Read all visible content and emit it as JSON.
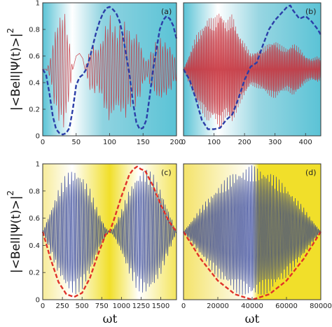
{
  "figure": {
    "ylabel_top": "|<Bell|Ψ(t)>|",
    "ylabel_bottom": "|<Bell|Ψ(t)>|",
    "ylabel_exponent": "2",
    "xlabel_left": "ωt",
    "xlabel_right": "ωt",
    "colors": {
      "cyan_bg": "#5bc3d6",
      "yellow_bg": "#f1df2a",
      "red_signal": "#c8323c",
      "blue_signal": "#1c2f8f",
      "blue_envelope": "#2b3ea8",
      "red_envelope": "#e0322a"
    }
  },
  "chart_data": [
    {
      "type": "line",
      "panel_label": "(a)",
      "xlim": [
        0,
        200
      ],
      "ylim": [
        0,
        1
      ],
      "x_ticks": [
        "0",
        "50",
        "100",
        "150",
        "200"
      ],
      "y_ticks": [
        "0",
        "0.2",
        "0.4",
        "0.6",
        "0.8",
        "1"
      ],
      "background": "cyan",
      "signal_color": "red",
      "envelope_style": "dashed",
      "series": [
        {
          "role": "signal-upper-envelope",
          "x": [
            0,
            5,
            10,
            15,
            20,
            25,
            30,
            35,
            40,
            45,
            50,
            55,
            60,
            65,
            70,
            75,
            80,
            85,
            90,
            95,
            100,
            105,
            110,
            115,
            120,
            125,
            130,
            135,
            140,
            145,
            150,
            155,
            160,
            165,
            170,
            175,
            180,
            185,
            190,
            195,
            200
          ],
          "y": [
            0.5,
            0.5,
            0.55,
            0.7,
            0.85,
            0.9,
            0.97,
            0.9,
            0.7,
            0.5,
            0.4,
            0.38,
            0.42,
            0.55,
            0.65,
            0.7,
            0.66,
            0.68,
            0.76,
            0.86,
            0.92,
            0.86,
            0.8,
            0.83,
            0.86,
            0.88,
            0.8,
            0.74,
            0.8,
            0.72,
            0.62,
            0.56,
            0.62,
            0.66,
            0.72,
            0.74,
            0.72,
            0.7,
            0.68,
            0.62,
            0.58
          ]
        },
        {
          "role": "dashed-envelope",
          "x": [
            0,
            5,
            10,
            15,
            20,
            25,
            30,
            35,
            40,
            45,
            50,
            55,
            60,
            65,
            70,
            75,
            80,
            85,
            90,
            95,
            100,
            105,
            110,
            115,
            120,
            125,
            130,
            135,
            140,
            145,
            150,
            155,
            160,
            165,
            170,
            175,
            180,
            185,
            190,
            195,
            200
          ],
          "y": [
            0.5,
            0.46,
            0.32,
            0.15,
            0.05,
            0.02,
            0.01,
            0.02,
            0.06,
            0.2,
            0.38,
            0.44,
            0.46,
            0.5,
            0.58,
            0.68,
            0.78,
            0.86,
            0.92,
            0.96,
            0.97,
            0.95,
            0.92,
            0.86,
            0.75,
            0.6,
            0.45,
            0.25,
            0.1,
            0.05,
            0.06,
            0.12,
            0.3,
            0.5,
            0.65,
            0.8,
            0.87,
            0.9,
            0.88,
            0.83,
            0.73
          ]
        }
      ]
    },
    {
      "type": "line",
      "panel_label": "(b)",
      "xlim": [
        0,
        450
      ],
      "ylim": [
        0,
        1
      ],
      "x_ticks": [
        "0",
        "100",
        "200",
        "300",
        "400"
      ],
      "y_ticks": [],
      "background": "cyan",
      "signal_color": "red",
      "envelope_style": "dashed",
      "series": [
        {
          "role": "signal-upper-envelope",
          "x": [
            0,
            20,
            40,
            60,
            80,
            100,
            120,
            140,
            160,
            180,
            200,
            220,
            240,
            260,
            280,
            300,
            320,
            340,
            360,
            380,
            400,
            420,
            440,
            450
          ],
          "y": [
            0.5,
            0.62,
            0.75,
            0.82,
            0.9,
            0.88,
            0.96,
            0.86,
            0.92,
            0.78,
            0.7,
            0.62,
            0.64,
            0.66,
            0.7,
            0.72,
            0.68,
            0.66,
            0.7,
            0.66,
            0.6,
            0.58,
            0.6,
            0.58
          ]
        },
        {
          "role": "dashed-envelope",
          "x": [
            0,
            20,
            40,
            60,
            80,
            100,
            120,
            140,
            160,
            180,
            200,
            220,
            240,
            260,
            280,
            300,
            320,
            340,
            350,
            360,
            380,
            400,
            420,
            440,
            450
          ],
          "y": [
            0.5,
            0.42,
            0.28,
            0.12,
            0.05,
            0.05,
            0.06,
            0.12,
            0.16,
            0.28,
            0.42,
            0.52,
            0.55,
            0.68,
            0.8,
            0.87,
            0.92,
            0.97,
            0.98,
            0.94,
            0.88,
            0.9,
            0.86,
            0.8,
            0.76
          ]
        }
      ]
    },
    {
      "type": "line",
      "panel_label": "(c)",
      "xlim": [
        0,
        1700
      ],
      "ylim": [
        0,
        1
      ],
      "x_ticks": [
        "0",
        "250",
        "500",
        "750",
        "1000",
        "1250",
        "1500"
      ],
      "y_ticks": [
        "0",
        "0.2",
        "0.4",
        "0.6",
        "0.8",
        "1"
      ],
      "background": "yellow",
      "signal_color": "blue",
      "envelope_style": "dashed",
      "series": [
        {
          "role": "signal-upper-envelope",
          "x": [
            0,
            100,
            200,
            300,
            400,
            500,
            600,
            700,
            800,
            850,
            900,
            1000,
            1100,
            1200,
            1300,
            1400,
            1500,
            1600,
            1700
          ],
          "y": [
            0.5,
            0.66,
            0.82,
            0.93,
            0.97,
            0.93,
            0.82,
            0.66,
            0.53,
            0.5,
            0.53,
            0.66,
            0.82,
            0.93,
            0.97,
            0.93,
            0.82,
            0.66,
            0.5
          ]
        },
        {
          "role": "dashed-envelope",
          "x": [
            0,
            100,
            200,
            300,
            400,
            500,
            600,
            700,
            800,
            850,
            900,
            1000,
            1100,
            1150,
            1200,
            1250,
            1300,
            1400,
            1500,
            1600,
            1700
          ],
          "y": [
            0.5,
            0.3,
            0.13,
            0.04,
            0.02,
            0.05,
            0.16,
            0.33,
            0.48,
            0.5,
            0.58,
            0.76,
            0.92,
            0.96,
            0.98,
            0.96,
            0.95,
            0.84,
            0.7,
            0.58,
            0.5
          ]
        }
      ]
    },
    {
      "type": "line",
      "panel_label": "(d)",
      "xlim": [
        0,
        80000
      ],
      "ylim": [
        0,
        1
      ],
      "x_ticks": [
        "0",
        "20000",
        "40000",
        "60000",
        "80000"
      ],
      "y_ticks": [],
      "background": "yellow",
      "signal_color": "blue",
      "envelope_style": "dashed",
      "series": [
        {
          "role": "signal-upper-envelope",
          "x": [
            0,
            10000,
            20000,
            30000,
            40000,
            50000,
            60000,
            70000,
            80000
          ],
          "y": [
            0.5,
            0.68,
            0.84,
            0.95,
            0.99,
            0.95,
            0.84,
            0.68,
            0.5
          ]
        },
        {
          "role": "dashed-envelope",
          "x": [
            0,
            10000,
            20000,
            30000,
            40000,
            50000,
            60000,
            70000,
            80000
          ],
          "y": [
            0.5,
            0.3,
            0.14,
            0.04,
            0.0,
            0.04,
            0.14,
            0.3,
            0.5
          ]
        }
      ]
    }
  ]
}
